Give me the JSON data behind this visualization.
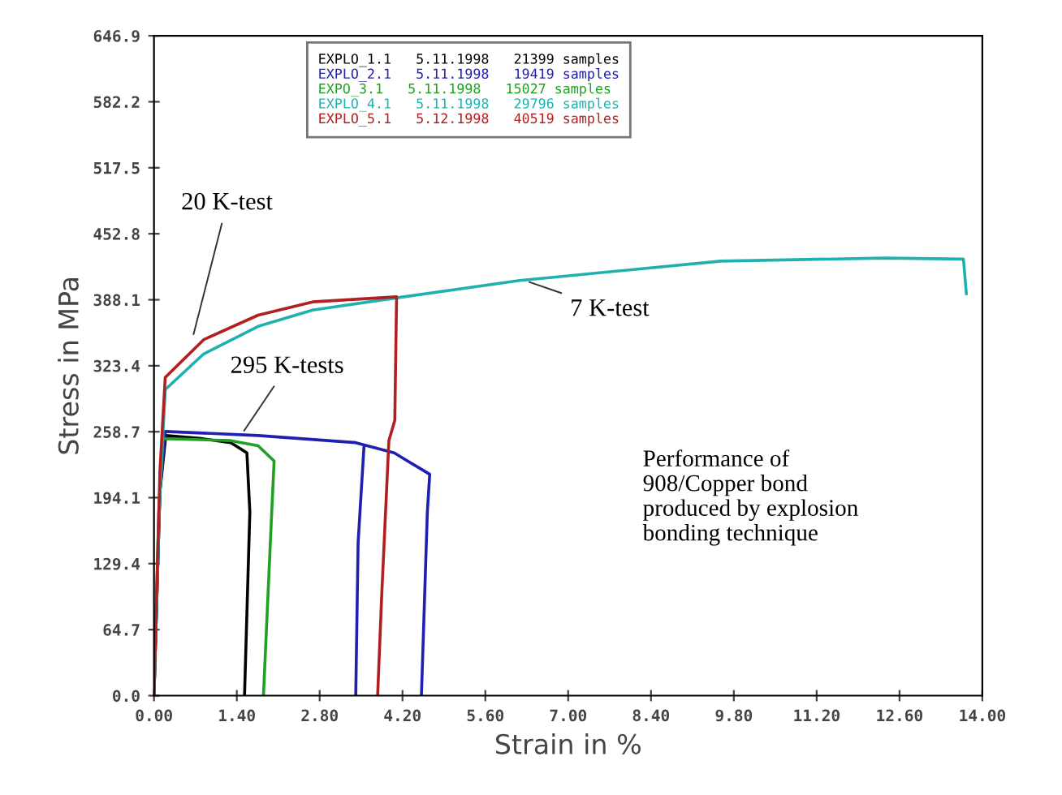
{
  "chart_data": {
    "type": "line",
    "xlabel": "Strain in %",
    "ylabel": "Stress in MPa",
    "xlim": [
      0,
      14
    ],
    "ylim": [
      0,
      646.9
    ],
    "xticks": [
      {
        "value": 0,
        "label": "0.00"
      },
      {
        "value": 1.4,
        "label": "1.40"
      },
      {
        "value": 2.8,
        "label": "2.80"
      },
      {
        "value": 4.2,
        "label": "4.20"
      },
      {
        "value": 5.6,
        "label": "5.60"
      },
      {
        "value": 7,
        "label": "7.00"
      },
      {
        "value": 8.4,
        "label": "8.40"
      },
      {
        "value": 9.8,
        "label": "9.80"
      },
      {
        "value": 11.2,
        "label": "11.20"
      },
      {
        "value": 12.6,
        "label": "12.60"
      },
      {
        "value": 14,
        "label": "14.00"
      }
    ],
    "yticks": [
      {
        "value": 0,
        "label": "0.0"
      },
      64.7,
      129.4,
      194.1,
      258.7,
      323.4,
      388.1,
      452.8,
      517.5,
      582.2,
      646.9
    ],
    "grid": false,
    "legend": "top",
    "marker": "none",
    "line_style": "solid",
    "series": [
      {
        "name": "EXPLO_1.1   5.11.1998   21399 samples",
        "color": "#000000",
        "x": [
          0,
          0.1,
          0.2,
          0.8,
          1.3,
          1.57,
          1.62,
          1.53
        ],
        "values": [
          0,
          200,
          255,
          252,
          248,
          238,
          180,
          0
        ]
      },
      {
        "name": "EXPLO_2.1   5.11.1998   19419 samples",
        "color": "#1f1fb0",
        "x": [
          0,
          0.1,
          0.19,
          1.76,
          3.41,
          4.06,
          4.66,
          4.62,
          4.52,
          null,
          3.55,
          3.45,
          3.41
        ],
        "values": [
          0,
          200,
          259,
          255,
          248,
          238,
          217,
          180,
          0,
          null,
          245,
          150,
          0
        ]
      },
      {
        "name": "EXPO_3.1   5.11.1998   15027 samples",
        "color": "#20a020",
        "x": [
          0,
          0.08,
          0.15,
          1.3,
          1.76,
          2.03,
          1.99,
          1.85
        ],
        "values": [
          0,
          180,
          252,
          250,
          245,
          230,
          180,
          0
        ]
      },
      {
        "name": "EXPLO_4.1   5.11.1998   29796 samples",
        "color": "#20b0b0",
        "x": [
          0,
          0.1,
          0.19,
          0.84,
          1.76,
          2.68,
          4.1,
          6.18,
          6.72,
          9.58,
          12.35,
          13.68,
          13.73
        ],
        "values": [
          0,
          200,
          300,
          335,
          362,
          378,
          390,
          407,
          410,
          426,
          429,
          428,
          394
        ]
      },
      {
        "name": "EXPLO_5.1   5.12.1998   40519 samples",
        "color": "#b02020",
        "x": [
          0,
          0.1,
          0.19,
          0.84,
          1.76,
          2.68,
          4.1,
          4.07,
          3.97,
          3.85,
          3.78
        ],
        "values": [
          0,
          220,
          312,
          349,
          373,
          386,
          391,
          270,
          250,
          100,
          0
        ]
      }
    ],
    "annotations": [
      {
        "text": "20 K-test",
        "x": 0.65,
        "y": 350
      },
      {
        "text": "7 K-test",
        "x": 6.27,
        "y": 407
      },
      {
        "text": "295 K-tests",
        "x": 1.48,
        "y": 256
      },
      "Performance of\n908/Copper bond\nproduced by explosion\nbonding technique"
    ]
  }
}
